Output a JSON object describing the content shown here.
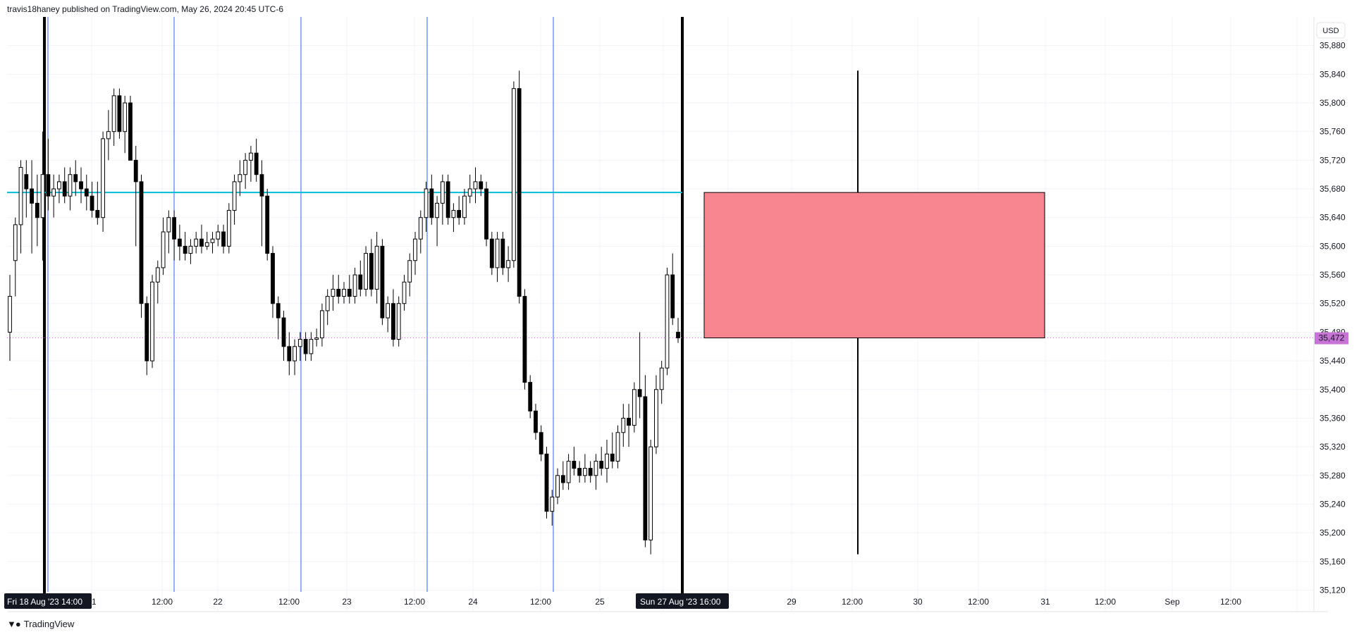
{
  "header": {
    "publisher_line": "travis18haney published on TradingView.com, May 26, 2024 20:45 UTC-6"
  },
  "footer": {
    "brand": "TradingView",
    "logo_icon": "tradingview-logo-icon"
  },
  "colors": {
    "bull_body": "#ffffff",
    "bear_body": "#000000",
    "wick": "#000000",
    "vertical_marker": "#2962ff",
    "session_line": "#000000",
    "level_line": "#00bcd4",
    "zone_fill": "#f7858f",
    "price_badge": "#c774d6",
    "grid": "#f0f3fa"
  },
  "chart_data": {
    "type": "candlestick",
    "currency_button": "USD",
    "y_axis": {
      "range": [
        35090,
        35920
      ],
      "ticks": [
        "35,880",
        "35,840",
        "35,800",
        "35,760",
        "35,720",
        "35,680",
        "35,640",
        "35,600",
        "35,560",
        "35,520",
        "35,480",
        "35,440",
        "35,400",
        "35,360",
        "35,320",
        "35,280",
        "35,240",
        "35,200",
        "35,160",
        "35,120"
      ]
    },
    "x_axis": {
      "ticks": [
        "21",
        "12:00",
        "22",
        "12:00",
        "23",
        "12:00",
        "24",
        "12:00",
        "25",
        "12:00",
        "29",
        "12:00",
        "30",
        "12:00",
        "31",
        "12:00",
        "Sep",
        "12:00"
      ],
      "start_label": "Fri 18 Aug '23   14:00",
      "end_label": "Sun 27 Aug '23   16:00"
    },
    "current_price": {
      "value": 35472,
      "label": "35,472"
    },
    "horizontal_level": {
      "value": 35675
    },
    "zone": {
      "top": 35675,
      "bottom": 35472,
      "wick_high": 35845,
      "wick_low": 35170
    },
    "candles": [
      {
        "o": 35480,
        "h": 35560,
        "l": 35440,
        "c": 35530
      },
      {
        "o": 35580,
        "h": 35640,
        "l": 35530,
        "c": 35630
      },
      {
        "o": 35630,
        "h": 35720,
        "l": 35590,
        "c": 35710
      },
      {
        "o": 35700,
        "h": 35720,
        "l": 35640,
        "c": 35680
      },
      {
        "o": 35680,
        "h": 35720,
        "l": 35590,
        "c": 35660
      },
      {
        "o": 35660,
        "h": 35700,
        "l": 35600,
        "c": 35640
      },
      {
        "o": 35640,
        "h": 35760,
        "l": 35580,
        "c": 35700
      },
      {
        "o": 35700,
        "h": 35750,
        "l": 35650,
        "c": 35670
      },
      {
        "o": 35670,
        "h": 35700,
        "l": 35640,
        "c": 35680
      },
      {
        "o": 35680,
        "h": 35700,
        "l": 35660,
        "c": 35690
      },
      {
        "o": 35690,
        "h": 35710,
        "l": 35660,
        "c": 35670
      },
      {
        "o": 35670,
        "h": 35710,
        "l": 35650,
        "c": 35700
      },
      {
        "o": 35700,
        "h": 35720,
        "l": 35670,
        "c": 35690
      },
      {
        "o": 35690,
        "h": 35710,
        "l": 35660,
        "c": 35680
      },
      {
        "o": 35680,
        "h": 35700,
        "l": 35650,
        "c": 35670
      },
      {
        "o": 35670,
        "h": 35690,
        "l": 35640,
        "c": 35650
      },
      {
        "o": 35650,
        "h": 35690,
        "l": 35630,
        "c": 35640
      },
      {
        "o": 35640,
        "h": 35760,
        "l": 35620,
        "c": 35750
      },
      {
        "o": 35750,
        "h": 35790,
        "l": 35720,
        "c": 35760
      },
      {
        "o": 35760,
        "h": 35820,
        "l": 35740,
        "c": 35810
      },
      {
        "o": 35810,
        "h": 35820,
        "l": 35750,
        "c": 35760
      },
      {
        "o": 35760,
        "h": 35810,
        "l": 35730,
        "c": 35800
      },
      {
        "o": 35800,
        "h": 35810,
        "l": 35720,
        "c": 35720
      },
      {
        "o": 35720,
        "h": 35740,
        "l": 35600,
        "c": 35690
      },
      {
        "o": 35690,
        "h": 35700,
        "l": 35500,
        "c": 35520
      },
      {
        "o": 35520,
        "h": 35530,
        "l": 35420,
        "c": 35440
      },
      {
        "o": 35440,
        "h": 35560,
        "l": 35430,
        "c": 35550
      },
      {
        "o": 35550,
        "h": 35580,
        "l": 35520,
        "c": 35570
      },
      {
        "o": 35570,
        "h": 35640,
        "l": 35560,
        "c": 35620
      },
      {
        "o": 35620,
        "h": 35650,
        "l": 35590,
        "c": 35640
      },
      {
        "o": 35640,
        "h": 35650,
        "l": 35580,
        "c": 35610
      },
      {
        "o": 35610,
        "h": 35630,
        "l": 35580,
        "c": 35600
      },
      {
        "o": 35600,
        "h": 35620,
        "l": 35580,
        "c": 35590
      },
      {
        "o": 35590,
        "h": 35610,
        "l": 35575,
        "c": 35600
      },
      {
        "o": 35600,
        "h": 35620,
        "l": 35590,
        "c": 35610
      },
      {
        "o": 35610,
        "h": 35630,
        "l": 35590,
        "c": 35600
      },
      {
        "o": 35600,
        "h": 35620,
        "l": 35595,
        "c": 35605
      },
      {
        "o": 35605,
        "h": 35620,
        "l": 35590,
        "c": 35610
      },
      {
        "o": 35610,
        "h": 35630,
        "l": 35600,
        "c": 35620
      },
      {
        "o": 35620,
        "h": 35630,
        "l": 35590,
        "c": 35600
      },
      {
        "o": 35600,
        "h": 35660,
        "l": 35590,
        "c": 35650
      },
      {
        "o": 35650,
        "h": 35700,
        "l": 35630,
        "c": 35690
      },
      {
        "o": 35690,
        "h": 35720,
        "l": 35670,
        "c": 35700
      },
      {
        "o": 35700,
        "h": 35730,
        "l": 35680,
        "c": 35720
      },
      {
        "o": 35720,
        "h": 35740,
        "l": 35690,
        "c": 35730
      },
      {
        "o": 35730,
        "h": 35750,
        "l": 35690,
        "c": 35700
      },
      {
        "o": 35700,
        "h": 35720,
        "l": 35600,
        "c": 35670
      },
      {
        "o": 35670,
        "h": 35680,
        "l": 35580,
        "c": 35590
      },
      {
        "o": 35590,
        "h": 35600,
        "l": 35500,
        "c": 35520
      },
      {
        "o": 35520,
        "h": 35530,
        "l": 35470,
        "c": 35500
      },
      {
        "o": 35500,
        "h": 35510,
        "l": 35440,
        "c": 35460
      },
      {
        "o": 35460,
        "h": 35480,
        "l": 35420,
        "c": 35440
      },
      {
        "o": 35440,
        "h": 35470,
        "l": 35420,
        "c": 35460
      },
      {
        "o": 35460,
        "h": 35480,
        "l": 35440,
        "c": 35470
      },
      {
        "o": 35470,
        "h": 35480,
        "l": 35440,
        "c": 35450
      },
      {
        "o": 35450,
        "h": 35480,
        "l": 35440,
        "c": 35470
      },
      {
        "o": 35470,
        "h": 35485,
        "l": 35460,
        "c": 35472
      },
      {
        "o": 35472,
        "h": 35520,
        "l": 35460,
        "c": 35510
      },
      {
        "o": 35510,
        "h": 35540,
        "l": 35490,
        "c": 35530
      },
      {
        "o": 35530,
        "h": 35560,
        "l": 35510,
        "c": 35540
      },
      {
        "o": 35540,
        "h": 35560,
        "l": 35520,
        "c": 35530
      },
      {
        "o": 35530,
        "h": 35550,
        "l": 35520,
        "c": 35540
      },
      {
        "o": 35540,
        "h": 35560,
        "l": 35520,
        "c": 35530
      },
      {
        "o": 35530,
        "h": 35570,
        "l": 35520,
        "c": 35560
      },
      {
        "o": 35560,
        "h": 35580,
        "l": 35530,
        "c": 35540
      },
      {
        "o": 35540,
        "h": 35600,
        "l": 35530,
        "c": 35590
      },
      {
        "o": 35590,
        "h": 35610,
        "l": 35530,
        "c": 35540
      },
      {
        "o": 35540,
        "h": 35620,
        "l": 35520,
        "c": 35600
      },
      {
        "o": 35600,
        "h": 35610,
        "l": 35490,
        "c": 35500
      },
      {
        "o": 35500,
        "h": 35530,
        "l": 35480,
        "c": 35520
      },
      {
        "o": 35520,
        "h": 35540,
        "l": 35460,
        "c": 35470
      },
      {
        "o": 35470,
        "h": 35530,
        "l": 35460,
        "c": 35520
      },
      {
        "o": 35520,
        "h": 35560,
        "l": 35510,
        "c": 35550
      },
      {
        "o": 35550,
        "h": 35590,
        "l": 35530,
        "c": 35580
      },
      {
        "o": 35580,
        "h": 35620,
        "l": 35560,
        "c": 35610
      },
      {
        "o": 35610,
        "h": 35650,
        "l": 35590,
        "c": 35640
      },
      {
        "o": 35640,
        "h": 35690,
        "l": 35620,
        "c": 35680
      },
      {
        "o": 35680,
        "h": 35700,
        "l": 35630,
        "c": 35640
      },
      {
        "o": 35640,
        "h": 35670,
        "l": 35600,
        "c": 35660
      },
      {
        "o": 35660,
        "h": 35700,
        "l": 35630,
        "c": 35690
      },
      {
        "o": 35690,
        "h": 35700,
        "l": 35630,
        "c": 35640
      },
      {
        "o": 35640,
        "h": 35660,
        "l": 35620,
        "c": 35650
      },
      {
        "o": 35650,
        "h": 35670,
        "l": 35630,
        "c": 35640
      },
      {
        "o": 35640,
        "h": 35680,
        "l": 35630,
        "c": 35670
      },
      {
        "o": 35670,
        "h": 35700,
        "l": 35660,
        "c": 35680
      },
      {
        "o": 35680,
        "h": 35710,
        "l": 35660,
        "c": 35690
      },
      {
        "o": 35690,
        "h": 35700,
        "l": 35670,
        "c": 35680
      },
      {
        "o": 35680,
        "h": 35690,
        "l": 35600,
        "c": 35610
      },
      {
        "o": 35610,
        "h": 35620,
        "l": 35560,
        "c": 35570
      },
      {
        "o": 35570,
        "h": 35620,
        "l": 35550,
        "c": 35610
      },
      {
        "o": 35610,
        "h": 35620,
        "l": 35560,
        "c": 35570
      },
      {
        "o": 35570,
        "h": 35600,
        "l": 35550,
        "c": 35580
      },
      {
        "o": 35580,
        "h": 35830,
        "l": 35570,
        "c": 35820
      },
      {
        "o": 35820,
        "h": 35845,
        "l": 35520,
        "c": 35530
      },
      {
        "o": 35530,
        "h": 35540,
        "l": 35400,
        "c": 35410
      },
      {
        "o": 35410,
        "h": 35420,
        "l": 35360,
        "c": 35370
      },
      {
        "o": 35370,
        "h": 35380,
        "l": 35330,
        "c": 35340
      },
      {
        "o": 35340,
        "h": 35350,
        "l": 35300,
        "c": 35310
      },
      {
        "o": 35310,
        "h": 35320,
        "l": 35220,
        "c": 35230
      },
      {
        "o": 35230,
        "h": 35260,
        "l": 35210,
        "c": 35250
      },
      {
        "o": 35250,
        "h": 35290,
        "l": 35240,
        "c": 35280
      },
      {
        "o": 35280,
        "h": 35300,
        "l": 35260,
        "c": 35270
      },
      {
        "o": 35270,
        "h": 35310,
        "l": 35260,
        "c": 35300
      },
      {
        "o": 35300,
        "h": 35320,
        "l": 35280,
        "c": 35290
      },
      {
        "o": 35290,
        "h": 35300,
        "l": 35270,
        "c": 35280
      },
      {
        "o": 35280,
        "h": 35310,
        "l": 35270,
        "c": 35290
      },
      {
        "o": 35290,
        "h": 35300,
        "l": 35270,
        "c": 35280
      },
      {
        "o": 35280,
        "h": 35310,
        "l": 35260,
        "c": 35300
      },
      {
        "o": 35300,
        "h": 35320,
        "l": 35280,
        "c": 35290
      },
      {
        "o": 35290,
        "h": 35330,
        "l": 35270,
        "c": 35310
      },
      {
        "o": 35310,
        "h": 35340,
        "l": 35290,
        "c": 35300
      },
      {
        "o": 35300,
        "h": 35350,
        "l": 35290,
        "c": 35340
      },
      {
        "o": 35340,
        "h": 35380,
        "l": 35320,
        "c": 35360
      },
      {
        "o": 35360,
        "h": 35380,
        "l": 35320,
        "c": 35350
      },
      {
        "o": 35350,
        "h": 35410,
        "l": 35340,
        "c": 35400
      },
      {
        "o": 35400,
        "h": 35480,
        "l": 35360,
        "c": 35390
      },
      {
        "o": 35390,
        "h": 35420,
        "l": 35180,
        "c": 35190
      },
      {
        "o": 35190,
        "h": 35330,
        "l": 35170,
        "c": 35320
      },
      {
        "o": 35320,
        "h": 35420,
        "l": 35310,
        "c": 35400
      },
      {
        "o": 35400,
        "h": 35440,
        "l": 35380,
        "c": 35430
      },
      {
        "o": 35430,
        "h": 35570,
        "l": 35420,
        "c": 35560
      },
      {
        "o": 35560,
        "h": 35590,
        "l": 35490,
        "c": 35500
      },
      {
        "o": 35480,
        "h": 35500,
        "l": 35465,
        "c": 35472
      }
    ]
  }
}
